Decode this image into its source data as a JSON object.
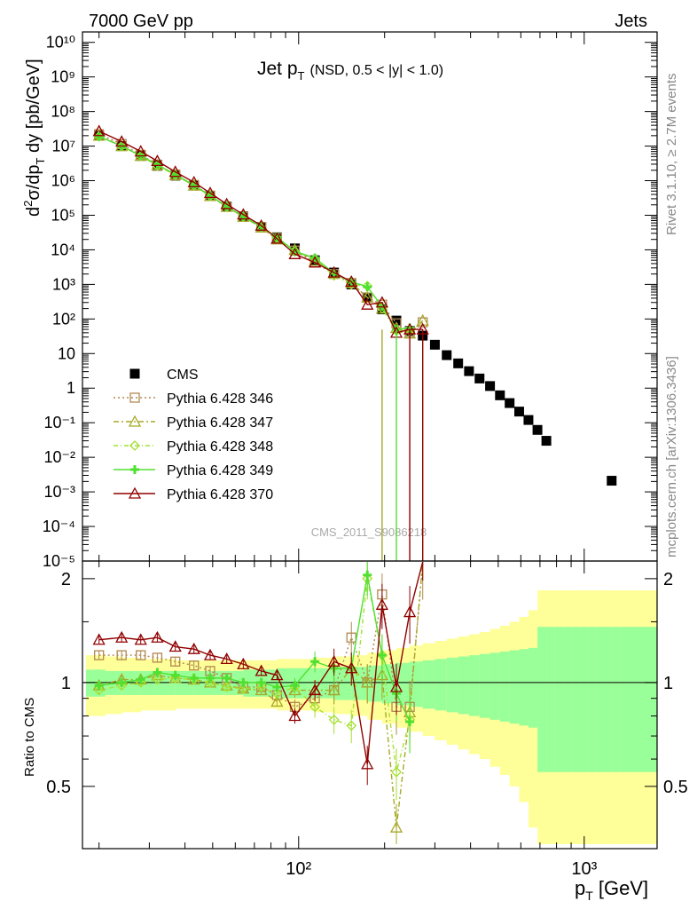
{
  "header": {
    "left": "7000 GeV pp",
    "right": "Jets"
  },
  "side_text": {
    "rivet": "Rivet 3.1.10, ≥ 2.7M events",
    "mcplots": "mcplots.cern.ch [arXiv:1306.3436]"
  },
  "watermark": "CMS_2011_S9086218",
  "plot_title": {
    "main": "Jet p",
    "sub": "T",
    "extra": "(NSD, 0.5 < |y| < 1.0)"
  },
  "axis": {
    "ylabel_top": "d²σ/dp_T dy [pb/GeV]",
    "ylabel_bottom": "Ratio to CMS",
    "xlabel": "p_T [GeV]",
    "xscale": "log",
    "yscale_top": "log",
    "xlim": [
      17.5,
      1800
    ],
    "ylim_top": [
      1e-05,
      20000000000.0
    ],
    "ylim_bottom": [
      0.33,
      2.25
    ],
    "x_tick_labels": [
      "10²",
      "10³"
    ],
    "top_tick_labels": [
      "10⁻⁵",
      "10⁻⁴",
      "10⁻³",
      "10⁻²",
      "10⁻¹",
      "1",
      "10",
      "10²",
      "10³",
      "10⁴",
      "10⁵",
      "10⁶",
      "10⁷",
      "10⁸",
      "10⁹",
      "10¹⁰"
    ],
    "bottom_tick_labels": [
      "0.5",
      "1",
      "2"
    ]
  },
  "legend": [
    "CMS",
    "Pythia 6.428 346",
    "Pythia 6.428 347",
    "Pythia 6.428 348",
    "Pythia 6.428 349",
    "Pythia 6.428 370"
  ],
  "colors": {
    "cms": "#000000",
    "p346": "#b08850",
    "p347": "#a8a828",
    "p348": "#a4e030",
    "p349": "#50e030",
    "p370": "#900000",
    "band_outer": "#ffff99",
    "band_inner": "#99ff99"
  },
  "chart_data": {
    "type": "scatter",
    "x": [
      20,
      24,
      28,
      32,
      37,
      43,
      49,
      56,
      64,
      74,
      84,
      97,
      114,
      133,
      153,
      174,
      196,
      220,
      245,
      272,
      300,
      330,
      362,
      395,
      430,
      468,
      507,
      548,
      592,
      638,
      686,
      737,
      790,
      846,
      905,
      967,
      1032,
      1101,
      1172,
      1248,
      1327
    ],
    "x_edges_band": [
      18,
      21,
      24,
      28,
      32,
      37,
      43,
      49,
      56,
      64,
      74,
      84,
      97,
      114,
      133,
      153,
      174,
      196,
      220,
      245,
      272,
      300,
      330,
      362,
      395,
      430,
      468,
      507,
      548,
      592,
      638,
      686,
      737,
      790,
      846,
      905,
      967,
      1032,
      1101,
      1172,
      1248,
      1327,
      1800
    ],
    "series": [
      {
        "name": "CMS",
        "x": [
          20,
          24,
          28,
          32,
          37,
          43,
          49,
          56,
          64,
          74,
          84,
          97,
          114,
          133,
          153,
          174,
          196,
          220,
          245,
          272,
          300,
          330,
          362,
          395,
          430,
          468,
          507,
          548,
          592,
          638,
          686,
          737,
          1248
        ],
        "y": [
          20000000.0,
          10000000.0,
          5200000.0,
          2700000.0,
          1400000.0,
          720000.0,
          360000.0,
          180000.0,
          93000.0,
          46000.0,
          23000.0,
          11000.0,
          5000.0,
          2200.0,
          1000.0,
          420,
          190,
          90,
          45,
          33,
          18,
          9.0,
          5.2,
          3.1,
          1.9,
          1.15,
          0.62,
          0.37,
          0.21,
          0.12,
          0.062,
          0.03,
          0.0021
        ]
      },
      {
        "name": "Pythia 6.428 346",
        "x": [
          20,
          24,
          28,
          32,
          37,
          43,
          49,
          56,
          64,
          74,
          84,
          97,
          114,
          133,
          153,
          174,
          196,
          220,
          245,
          272
        ],
        "y": [
          22000000.0,
          11500000.0,
          5600000.0,
          2900000.0,
          1500000.0,
          750000.0,
          370000.0,
          175000.0,
          90000.0,
          46000.0,
          22000.0,
          9500.0,
          4300.0,
          2000.0,
          1100.0,
          420,
          260,
          75,
          40,
          80
        ]
      },
      {
        "name": "Pythia 6.428 347",
        "x": [
          20,
          24,
          28,
          32,
          37,
          43,
          49,
          56,
          64,
          74,
          84,
          97,
          114,
          133,
          153,
          174,
          196,
          220,
          245,
          272
        ],
        "y": [
          20000000.0,
          10000000.0,
          5200000.0,
          2800000.0,
          1450000.0,
          720000.0,
          360000.0,
          175000.0,
          90000.0,
          44000.0,
          20000.0,
          10000.0,
          4800.0,
          2100.0,
          1100.0,
          420,
          200,
          55,
          38,
          90
        ]
      },
      {
        "name": "Pythia 6.428 348",
        "x": [
          20,
          24,
          28,
          32,
          37,
          43,
          49,
          56,
          64,
          74,
          84,
          97,
          114,
          133,
          153,
          174,
          196,
          220,
          245
        ],
        "y": [
          19000000.0,
          10000000.0,
          5200000.0,
          2700000.0,
          1450000.0,
          720000.0,
          360000.0,
          175000.0,
          90000.0,
          45000.0,
          22000.0,
          9000.0,
          5500.0,
          1800.0,
          1000.0,
          900,
          200,
          45,
          45
        ]
      },
      {
        "name": "Pythia 6.428 349",
        "x": [
          20,
          24,
          28,
          32,
          37,
          43,
          49,
          56,
          64,
          74,
          84,
          97,
          114,
          133,
          153,
          174,
          196,
          220,
          245
        ],
        "y": [
          19000000.0,
          10000000.0,
          5300000.0,
          2900000.0,
          1500000.0,
          740000.0,
          370000.0,
          180000.0,
          93000.0,
          46000.0,
          23000.0,
          9000.0,
          5800.0,
          2100.0,
          1200.0,
          850,
          230,
          50,
          55
        ]
      },
      {
        "name": "Pythia 6.428 370",
        "x": [
          20,
          24,
          28,
          32,
          37,
          43,
          49,
          56,
          64,
          74,
          84,
          97,
          114,
          133,
          153,
          174,
          196,
          220,
          245,
          272
        ],
        "y": [
          27000000.0,
          13500000.0,
          7000000.0,
          3700000.0,
          1800000.0,
          900000.0,
          440000.0,
          210000.0,
          105000.0,
          50000.0,
          21000.0,
          7500.0,
          4300.0,
          2200.0,
          1200.0,
          260,
          300,
          40,
          50,
          50
        ]
      }
    ],
    "ratio_series": [
      {
        "name": "Pythia 6.428 346",
        "y": [
          1.2,
          1.2,
          1.2,
          1.18,
          1.15,
          1.12,
          1.08,
          1.03,
          0.97,
          0.97,
          0.92,
          0.85,
          0.9,
          0.95,
          1.35,
          1.0,
          1.8,
          0.85,
          0.85,
          2.2
        ]
      },
      {
        "name": "Pythia 6.428 347",
        "y": [
          0.98,
          1.02,
          1.02,
          1.05,
          1.03,
          1.02,
          1.0,
          0.98,
          0.96,
          0.95,
          0.88,
          0.95,
          0.95,
          0.95,
          1.1,
          1.0,
          1.05,
          0.38,
          0.82,
          2.5
        ]
      },
      {
        "name": "Pythia 6.428 348",
        "y": [
          0.95,
          0.98,
          1.0,
          1.02,
          1.03,
          1.02,
          1.0,
          0.97,
          0.96,
          0.97,
          0.93,
          0.97,
          0.85,
          0.78,
          0.75,
          2.0,
          1.2,
          0.55,
          0.78
        ]
      },
      {
        "name": "Pythia 6.428 349",
        "y": [
          0.98,
          1.0,
          1.02,
          1.07,
          1.05,
          1.03,
          1.03,
          1.03,
          1.0,
          1.0,
          0.97,
          0.98,
          1.15,
          1.1,
          1.1,
          2.05,
          1.2,
          0.93,
          0.77
        ]
      },
      {
        "name": "Pythia 6.428 370",
        "y": [
          1.33,
          1.35,
          1.33,
          1.35,
          1.27,
          1.25,
          1.2,
          1.17,
          1.13,
          1.08,
          1.05,
          0.8,
          0.95,
          1.15,
          1.1,
          0.58,
          1.68,
          0.97,
          1.6,
          2.5
        ]
      }
    ],
    "band_outer_halfwidth": [
      0.2,
      0.19,
      0.18,
      0.17,
      0.17,
      0.16,
      0.16,
      0.16,
      0.16,
      0.16,
      0.16,
      0.17,
      0.17,
      0.18,
      0.19,
      0.2,
      0.22,
      0.24,
      0.26,
      0.28,
      0.3,
      0.32,
      0.34,
      0.36,
      0.38,
      0.4,
      0.43,
      0.46,
      0.5,
      0.55,
      0.62,
      0.85,
      0.85,
      0.85,
      0.85,
      0.85,
      0.85,
      0.85,
      0.85,
      0.85,
      0.85,
      0.85
    ],
    "band_inner_halfwidth": [
      0.09,
      0.08,
      0.08,
      0.08,
      0.08,
      0.08,
      0.08,
      0.08,
      0.08,
      0.09,
      0.09,
      0.1,
      0.1,
      0.1,
      0.11,
      0.11,
      0.12,
      0.13,
      0.14,
      0.15,
      0.16,
      0.17,
      0.18,
      0.19,
      0.2,
      0.21,
      0.22,
      0.23,
      0.24,
      0.25,
      0.26,
      0.45,
      0.45,
      0.45,
      0.45,
      0.45,
      0.45,
      0.45,
      0.45,
      0.45,
      0.45,
      0.45
    ]
  }
}
